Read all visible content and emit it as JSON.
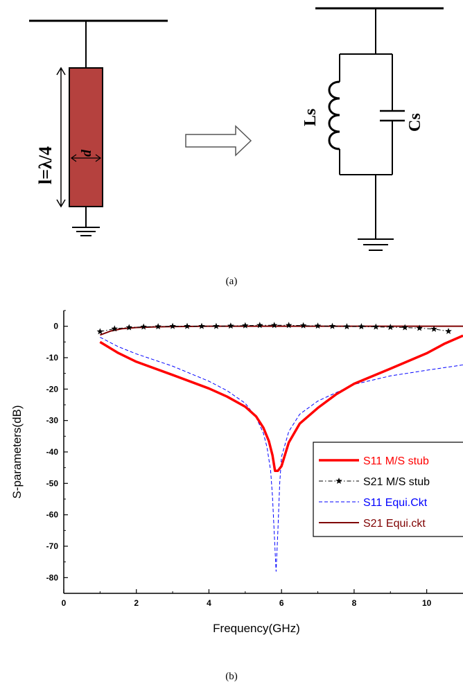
{
  "diagram": {
    "stub_length_label": "l=λ/4",
    "stub_width_label": "d",
    "inductor_label": "Ls",
    "capacitor_label": "Cs",
    "caption": "(a)",
    "stub_color": "#b5413e"
  },
  "chart_data": {
    "type": "line",
    "caption": "(b)",
    "xlabel": "Frequency(GHz)",
    "ylabel": "S-parameters(dB)",
    "xlim": [
      0,
      11
    ],
    "ylim": [
      -85,
      5
    ],
    "xticks": [
      "0",
      "2",
      "4",
      "6",
      "8",
      "10"
    ],
    "xtick_values": [
      0,
      2,
      4,
      6,
      8,
      10
    ],
    "yticks": [
      "0",
      "-10",
      "-20",
      "-30",
      "-40",
      "-50",
      "-60",
      "-70",
      "-80"
    ],
    "ytick_values": [
      0,
      -10,
      -20,
      -30,
      -40,
      -50,
      -60,
      -70,
      -80
    ],
    "grid": false,
    "legend_position": "right",
    "series": [
      {
        "name": "S11 M/S stub",
        "color": "#ff0000",
        "style": "solid-thick",
        "x": [
          1.0,
          1.5,
          2.0,
          3.0,
          4.0,
          4.5,
          5.0,
          5.3,
          5.5,
          5.65,
          5.75,
          5.82,
          5.9,
          6.0,
          6.2,
          6.5,
          7.0,
          7.5,
          8.0,
          9.0,
          10.0,
          10.5,
          11.0
        ],
        "y": [
          -5.0,
          -8.5,
          -11.3,
          -15.5,
          -19.8,
          -22.4,
          -25.6,
          -28.7,
          -32.3,
          -36.5,
          -41.0,
          -46.0,
          -46.0,
          -44.5,
          -37.0,
          -31.0,
          -26.0,
          -21.7,
          -18.3,
          -13.5,
          -8.6,
          -5.5,
          -3.0
        ]
      },
      {
        "name": "S21 M/S stub",
        "color": "#000000",
        "style": "dashdot-star",
        "x": [
          1.0,
          1.4,
          1.8,
          2.2,
          2.6,
          3.0,
          3.4,
          3.8,
          4.2,
          4.6,
          5.0,
          5.4,
          5.8,
          6.2,
          6.6,
          7.0,
          7.4,
          7.8,
          8.2,
          8.6,
          9.0,
          9.4,
          9.8,
          10.2,
          10.6
        ],
        "y": [
          -1.7,
          -0.8,
          -0.4,
          -0.2,
          -0.1,
          0.0,
          0.0,
          0.0,
          0.0,
          0.1,
          0.2,
          0.3,
          0.3,
          0.3,
          0.2,
          0.1,
          0.0,
          -0.1,
          -0.1,
          -0.2,
          -0.3,
          -0.4,
          -0.6,
          -0.9,
          -1.6
        ]
      },
      {
        "name": "S11 Equi.Ckt",
        "color": "#0000ff",
        "style": "dashed",
        "x": [
          1.0,
          1.5,
          2.0,
          3.0,
          4.0,
          4.5,
          5.0,
          5.3,
          5.5,
          5.6,
          5.7,
          5.75,
          5.8,
          5.85,
          5.9,
          5.95,
          6.0,
          6.2,
          6.5,
          7.0,
          8.0,
          9.0,
          10.0,
          11.0
        ],
        "y": [
          -3.5,
          -6.5,
          -8.8,
          -12.7,
          -17.5,
          -20.5,
          -24.5,
          -29.0,
          -34.0,
          -38.5,
          -46.0,
          -54.0,
          -66.0,
          -78.0,
          -65.0,
          -50.0,
          -41.5,
          -33.5,
          -28.0,
          -23.8,
          -18.5,
          -15.8,
          -14.0,
          -12.3
        ]
      },
      {
        "name": "S21 Equi.ckt",
        "color": "#7f0000",
        "style": "solid",
        "x": [
          1.0,
          1.3,
          1.6,
          2.0,
          2.5,
          3.0,
          4.0,
          5.0,
          6.0,
          7.0,
          8.0,
          9.0,
          10.0,
          11.0
        ],
        "y": [
          -2.8,
          -1.5,
          -0.8,
          -0.4,
          -0.2,
          -0.1,
          0.0,
          0.0,
          0.0,
          0.0,
          0.0,
          0.0,
          0.0,
          0.0
        ]
      }
    ]
  }
}
